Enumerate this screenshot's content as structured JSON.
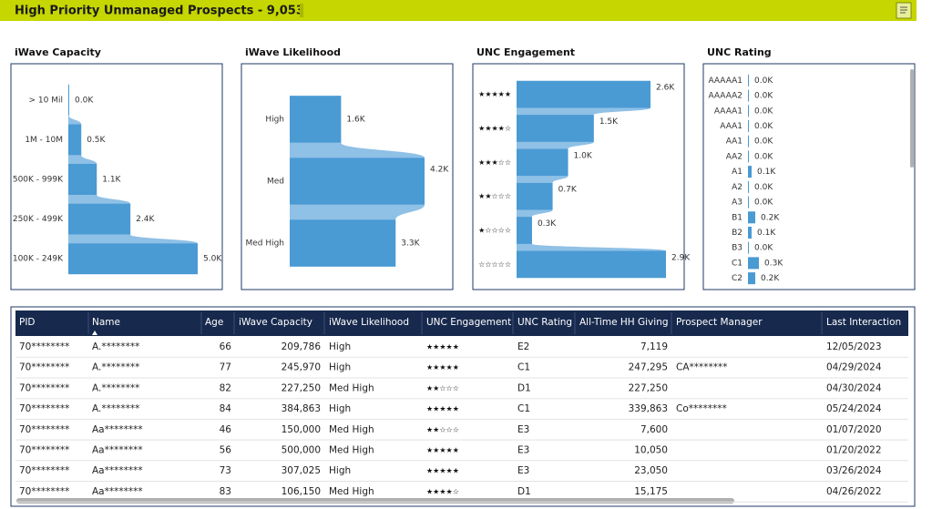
{
  "header": {
    "title": "High Priority Unmanaged Prospects - 9,053"
  },
  "chart_data": [
    {
      "type": "bar",
      "title": "iWave Capacity",
      "categories": [
        "> 10 Mil",
        "1M - 10M",
        "500K - 999K",
        "250K - 499K",
        "100K - 249K"
      ],
      "values": [
        20,
        500,
        1100,
        2400,
        5000
      ],
      "value_labels": [
        "0.0K",
        "0.5K",
        "1.1K",
        "2.4K",
        "5.0K"
      ],
      "color": "#4a9ad4"
    },
    {
      "type": "bar",
      "title": "iWave Likelihood",
      "categories": [
        "High",
        "Med",
        "Med High"
      ],
      "values": [
        1600,
        4200,
        3300
      ],
      "value_labels": [
        "1.6K",
        "4.2K",
        "3.3K"
      ],
      "color": "#4a9ad4"
    },
    {
      "type": "bar",
      "title": "UNC Engagement",
      "categories": [
        "★★★★★",
        "★★★★☆",
        "★★★☆☆",
        "★★☆☆☆",
        "★☆☆☆☆",
        "☆☆☆☆☆"
      ],
      "values": [
        2600,
        1500,
        1000,
        700,
        300,
        2900
      ],
      "value_labels": [
        "2.6K",
        "1.5K",
        "1.0K",
        "0.7K",
        "0.3K",
        "2.9K"
      ],
      "color": "#4a9ad4"
    },
    {
      "type": "bar",
      "title": "UNC Rating",
      "categories": [
        "AAAAA1",
        "AAAAA2",
        "AAAA1",
        "AAA1",
        "AA1",
        "AA2",
        "A1",
        "A2",
        "A3",
        "B1",
        "B2",
        "B3",
        "C1",
        "C2"
      ],
      "values": [
        5,
        5,
        5,
        5,
        10,
        10,
        100,
        20,
        20,
        200,
        100,
        20,
        300,
        200
      ],
      "value_labels": [
        "0.0K",
        "0.0K",
        "0.0K",
        "0.0K",
        "0.0K",
        "0.0K",
        "0.1K",
        "0.0K",
        "0.0K",
        "0.2K",
        "0.1K",
        "0.0K",
        "0.3K",
        "0.2K"
      ],
      "color": "#4a9ad4"
    }
  ],
  "table": {
    "columns": [
      "PID",
      "Name",
      "Age",
      "iWave Capacity",
      "iWave Likelihood",
      "UNC Engagement",
      "UNC Rating",
      "All-Time HH Giving",
      "Prospect Manager",
      "Last Interaction"
    ],
    "rows": [
      [
        "70********",
        "A.********",
        66,
        "209,786",
        "High",
        "★★★★★",
        "E2",
        "7,119",
        null,
        "12/05/2023"
      ],
      [
        "70********",
        "A.********",
        77,
        "245,970",
        "High",
        "★★★★★",
        "C1",
        "247,295",
        "CA********",
        "04/29/2024"
      ],
      [
        "70********",
        "A.********",
        82,
        "227,250",
        "Med High",
        "★★☆☆☆",
        "D1",
        "227,250",
        null,
        "04/30/2024"
      ],
      [
        "70********",
        "A.********",
        84,
        "384,863",
        "High",
        "★★★★★",
        "C1",
        "339,863",
        "Co********",
        "05/24/2024"
      ],
      [
        "70********",
        "Aa********",
        46,
        "150,000",
        "Med High",
        "★★☆☆☆",
        "E3",
        "7,600",
        null,
        "01/07/2020"
      ],
      [
        "70********",
        "Aa********",
        56,
        "500,000",
        "Med High",
        "★★★★★",
        "E3",
        "10,050",
        null,
        "01/20/2022"
      ],
      [
        "70********",
        "Aa********",
        73,
        "307,025",
        "High",
        "★★★★★",
        "E3",
        "23,050",
        null,
        "03/26/2024"
      ],
      [
        "70********",
        "Aa********",
        83,
        "106,150",
        "Med High",
        "★★★★☆",
        "D1",
        "15,175",
        null,
        "04/26/2022"
      ]
    ]
  }
}
